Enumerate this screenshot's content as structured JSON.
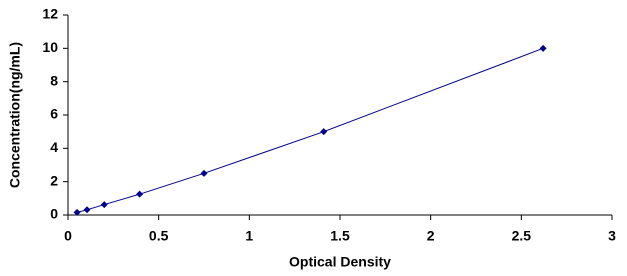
{
  "chart_data": {
    "type": "scatter",
    "line": true,
    "color": "#00008b",
    "x_label": "Optical Density",
    "y_label": "Concentration(ng/mL)",
    "x": [
      0.05,
      0.105,
      0.2,
      0.395,
      0.75,
      1.41,
      2.62
    ],
    "values": [
      0.156,
      0.312,
      0.625,
      1.25,
      2.5,
      5,
      10
    ],
    "xlim": [
      0,
      3
    ],
    "xticks": [
      0,
      0.5,
      1,
      1.5,
      2,
      2.5,
      3
    ],
    "ylim": [
      0,
      12
    ],
    "yticks": [
      0,
      2,
      4,
      6,
      8,
      10,
      12
    ],
    "grid": false
  }
}
